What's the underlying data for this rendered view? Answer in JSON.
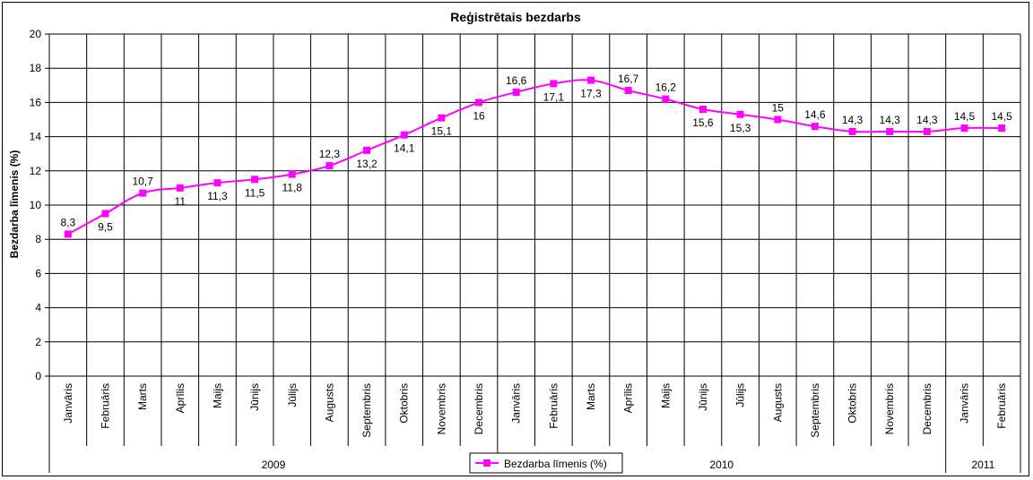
{
  "chart_data": {
    "type": "line",
    "title": "Reģistrētais bezdarbs",
    "ylabel": "Bezdarba līmenis (%)",
    "xlabel": "",
    "ylim": [
      0,
      20
    ],
    "yticks": [
      0,
      2,
      4,
      6,
      8,
      10,
      12,
      14,
      16,
      18,
      20
    ],
    "grid": true,
    "legend_position": "bottom-center",
    "categories": [
      "Janvāris",
      "Februāris",
      "Marts",
      "Aprīlis",
      "Maijs",
      "Jūnijs",
      "Jūlijs",
      "Augusts",
      "Septembris",
      "Oktobris",
      "Novembris",
      "Decembris",
      "Janvāris",
      "Februāris",
      "Marts",
      "Aprīlis",
      "Maijs",
      "Jūnijs",
      "Jūlijs",
      "Augusts",
      "Septembris",
      "Oktobris",
      "Novembris",
      "Decembris",
      "Janvāris",
      "Februāris"
    ],
    "groups": [
      {
        "label": "2009",
        "count": 12
      },
      {
        "label": "2010",
        "count": 12
      },
      {
        "label": "2011",
        "count": 2
      }
    ],
    "series": [
      {
        "name": "Bezdarba līmenis (%)",
        "color": "#ff00ff",
        "values": [
          8.3,
          9.5,
          10.7,
          11,
          11.3,
          11.5,
          11.8,
          12.3,
          13.2,
          14.1,
          15.1,
          16,
          16.6,
          17.1,
          17.3,
          16.7,
          16.2,
          15.6,
          15.3,
          15,
          14.6,
          14.3,
          14.3,
          14.3,
          14.5,
          14.5
        ],
        "labels": [
          "8,3",
          "9,5",
          "10,7",
          "11",
          "11,3",
          "11,5",
          "11,8",
          "12,3",
          "13,2",
          "14,1",
          "15,1",
          "16",
          "16,6",
          "17,1",
          "17,3",
          "16,7",
          "16,2",
          "15,6",
          "15,3",
          "15",
          "14,6",
          "14,3",
          "14,3",
          "14,3",
          "14,5",
          "14,5"
        ]
      }
    ]
  }
}
